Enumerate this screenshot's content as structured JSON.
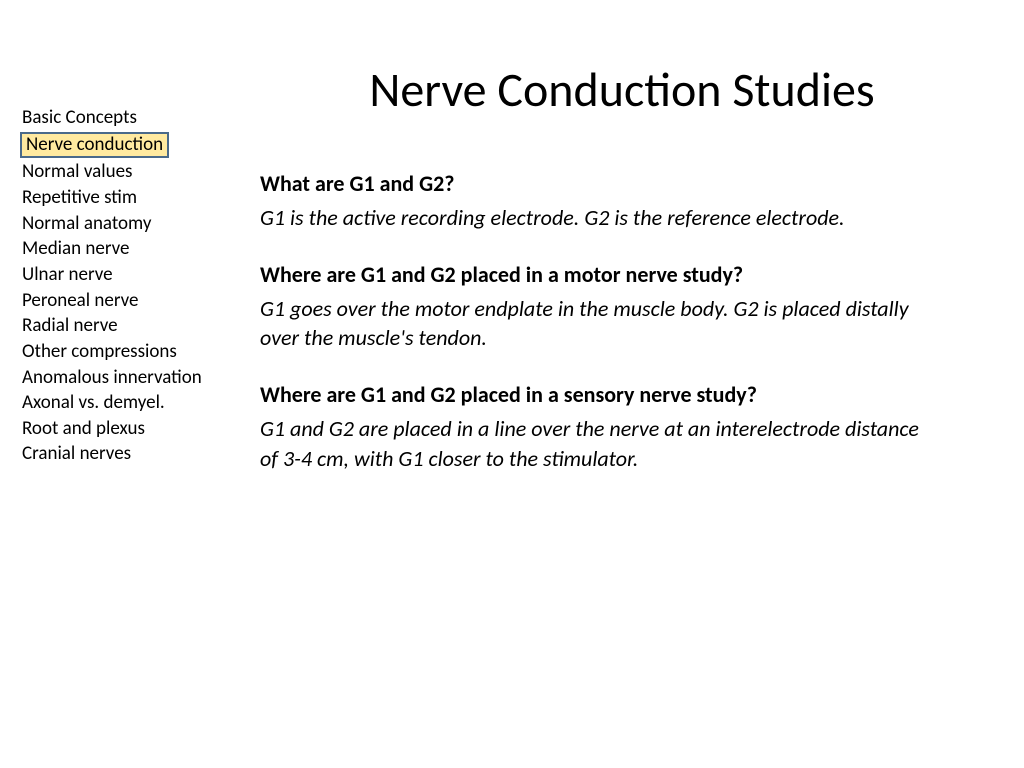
{
  "title": "Nerve Conduction Studies",
  "sidebar": {
    "selected_index": 1,
    "items": [
      "Basic Concepts",
      "Nerve conduction",
      "Normal values",
      "Repetitive stim",
      "Normal anatomy",
      "Median nerve",
      "Ulnar nerve",
      "Peroneal nerve",
      "Radial nerve",
      "Other compressions",
      "Anomalous innervation",
      "Axonal vs. demyel.",
      "Root and plexus",
      "Cranial nerves"
    ]
  },
  "qa": [
    {
      "q": "What are G1 and G2?",
      "a": "G1 is the active recording electrode. G2 is the reference electrode."
    },
    {
      "q": "Where are G1 and G2 placed in a motor nerve study?",
      "a": "G1 goes over the motor endplate in the muscle body. G2 is placed distally over the muscle's tendon."
    },
    {
      "q": "Where are G1 and G2 placed in a sensory nerve study?",
      "a": "G1 and G2 are placed in a line over the nerve at an interelectrode distance of 3-4 cm, with G1 closer to the stimulator."
    }
  ],
  "colors": {
    "background": "#ffffff",
    "text": "#000000",
    "highlight_bg": "#ffeaa0",
    "highlight_border": "#4a6a8a"
  },
  "typography": {
    "title_fontsize": 48,
    "sidebar_fontsize": 19,
    "body_fontsize": 22,
    "font_family": "Calibri"
  }
}
